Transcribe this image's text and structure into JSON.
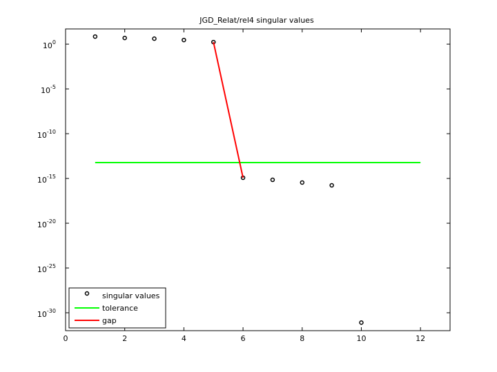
{
  "chart_data": {
    "type": "line",
    "title": "JGD_Relat/rel4 singular values",
    "log_y": true,
    "xlim": [
      0,
      13
    ],
    "xticks": [
      0,
      2,
      4,
      6,
      8,
      10,
      12
    ],
    "ylim": [
      1e-32,
      50
    ],
    "yticks": [
      {
        "value": 1,
        "label": "10^0"
      },
      {
        "value": 1e-05,
        "label": "10^-5"
      },
      {
        "value": 1e-10,
        "label": "10^-10"
      },
      {
        "value": 1e-15,
        "label": "10^-15"
      },
      {
        "value": 1e-20,
        "label": "10^-20"
      },
      {
        "value": 1e-25,
        "label": "10^-25"
      },
      {
        "value": 1e-30,
        "label": "10^-30"
      }
    ],
    "legend": "lower left",
    "series": [
      {
        "name": "singular values",
        "color": "#000000",
        "marker": "circle",
        "x": [
          1,
          2,
          3,
          4,
          5,
          6,
          7,
          8,
          9,
          10
        ],
        "values": [
          7,
          4.9,
          4.1,
          2.9,
          1.7,
          1.2e-15,
          7e-16,
          3.5e-16,
          1.7e-16,
          8e-32
        ]
      },
      {
        "name": "tolerance",
        "color": "#00ff00",
        "marker": "none",
        "x": [
          1,
          12
        ],
        "values": [
          5.9e-14,
          5.9e-14
        ]
      },
      {
        "name": "gap",
        "color": "#ff0000",
        "marker": "none",
        "x": [
          5,
          6
        ],
        "values": [
          1.7,
          1.2e-15
        ]
      }
    ]
  }
}
